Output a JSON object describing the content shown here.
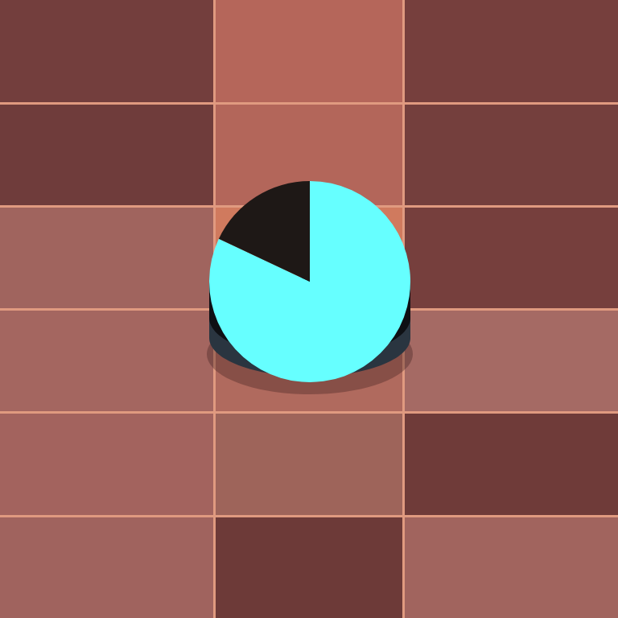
{
  "chart_data": {
    "type": "pie",
    "values": [
      82,
      18
    ],
    "colors": [
      "#66ffff",
      "#1e1816"
    ],
    "data_labels": false
  }
}
